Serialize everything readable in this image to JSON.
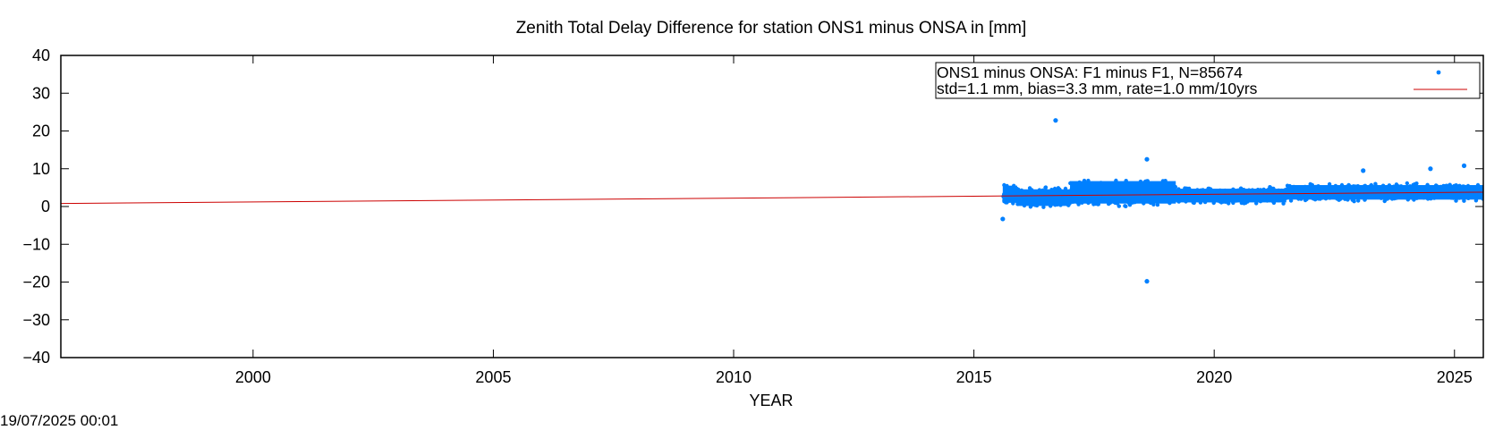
{
  "chart_data": {
    "type": "scatter",
    "title": "Zenith Total Delay Difference for station ONS1 minus ONSA in [mm]",
    "xlabel": "YEAR",
    "ylabel": "",
    "xlim": [
      1996.0,
      2025.6
    ],
    "ylim": [
      -40,
      40
    ],
    "xticks": [
      2000,
      2005,
      2010,
      2015,
      2020,
      2025
    ],
    "yticks": [
      40,
      30,
      20,
      10,
      0,
      -10,
      -20,
      -30,
      -40
    ],
    "xtick_labels": [
      "2000",
      "2005",
      "2010",
      "2015",
      "2020",
      "2025"
    ],
    "ytick_labels": [
      "40",
      "30",
      "20",
      "10",
      "0",
      "−10",
      "−20",
      "−30",
      "−40"
    ],
    "grid": false,
    "legend_position": "top-right",
    "series": [
      {
        "name": "ONS1 minus ONSA: F1 minus F1, N=85674",
        "kind": "points",
        "color": "#0080ff",
        "x_range": [
          2015.6,
          2025.6
        ],
        "band_segments": [
          {
            "x": [
              2015.6,
              2015.9
            ],
            "low": 0.0,
            "high": 6.5
          },
          {
            "x": [
              2015.9,
              2017.0
            ],
            "low": -0.8,
            "high": 5.5
          },
          {
            "x": [
              2017.0,
              2019.2
            ],
            "low": -0.5,
            "high": 8.0
          },
          {
            "x": [
              2019.2,
              2021.5
            ],
            "low": 0.3,
            "high": 5.5
          },
          {
            "x": [
              2021.5,
              2025.6
            ],
            "low": 1.0,
            "high": 6.5
          }
        ],
        "outliers": [
          {
            "x": 2016.7,
            "y": 22.8
          },
          {
            "x": 2018.6,
            "y": -19.8
          },
          {
            "x": 2018.6,
            "y": 12.5
          },
          {
            "x": 2024.5,
            "y": 10.0
          },
          {
            "x": 2025.2,
            "y": 10.8
          },
          {
            "x": 2015.6,
            "y": -3.3
          },
          {
            "x": 2023.1,
            "y": 9.5
          }
        ]
      },
      {
        "name": "std=1.1 mm, bias=3.3 mm, rate=1.0 mm/10yrs",
        "kind": "line",
        "color": "#cc0000",
        "x": [
          1996.0,
          2025.6
        ],
        "y": [
          0.8,
          3.8
        ]
      }
    ]
  },
  "footer": {
    "timestamp": "19/07/2025 00:01"
  }
}
